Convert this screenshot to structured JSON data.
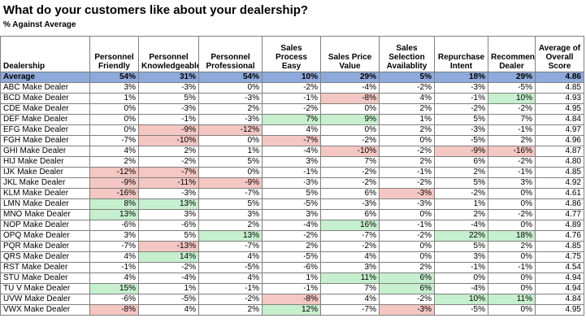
{
  "title": "What do your customers like about your dealership?",
  "subtitle": "% Against Average",
  "columns": [
    "Dealership",
    "Personnel Friendly",
    "Personnel Knowledgeable",
    "Personnel Professional",
    "Sales Process Easy",
    "Sales Price Value",
    "Sales Selection Availablity",
    "Repurchase Intent",
    "Recommend Dealer",
    "Average of Overall Score"
  ],
  "colors": {
    "average_row": "#8ea9db",
    "negative_fill": "#f4c7c3",
    "negative_text": "#c00000",
    "positive_fill": "#c6efce",
    "positive_text": "#006100"
  },
  "rows": [
    {
      "dealer": "Average",
      "values": [
        "54%",
        "31%",
        "54%",
        "10%",
        "29%",
        "5%",
        "18%",
        "29%",
        "4.86"
      ],
      "highlight": [
        "",
        "",
        "",
        "",
        "",
        "",
        "",
        "",
        ""
      ]
    },
    {
      "dealer": "ABC Make Dealer",
      "values": [
        "3%",
        "-3%",
        "0%",
        "-2%",
        "-4%",
        "-2%",
        "-3%",
        "-5%",
        "4.85"
      ],
      "highlight": [
        "",
        "",
        "",
        "",
        "",
        "",
        "",
        "",
        ""
      ]
    },
    {
      "dealer": "BCD Make Dealer",
      "values": [
        "1%",
        "5%",
        "-3%",
        "-1%",
        "-8%",
        "4%",
        "-1%",
        "10%",
        "4.93"
      ],
      "highlight": [
        "",
        "",
        "",
        "",
        "neg",
        "",
        "",
        "pos",
        ""
      ]
    },
    {
      "dealer": "CDE Make Dealer",
      "values": [
        "0%",
        "-3%",
        "2%",
        "-2%",
        "0%",
        "2%",
        "-2%",
        "-2%",
        "4.95"
      ],
      "highlight": [
        "",
        "",
        "",
        "",
        "",
        "",
        "",
        "",
        ""
      ]
    },
    {
      "dealer": "DEF Make Dealer",
      "values": [
        "0%",
        "-1%",
        "-3%",
        "7%",
        "9%",
        "1%",
        "5%",
        "7%",
        "4.84"
      ],
      "highlight": [
        "",
        "",
        "",
        "pos",
        "pos",
        "",
        "",
        "",
        ""
      ]
    },
    {
      "dealer": "EFG Make Dealer",
      "values": [
        "0%",
        "-9%",
        "-12%",
        "4%",
        "0%",
        "2%",
        "-3%",
        "-1%",
        "4.97"
      ],
      "highlight": [
        "",
        "neg",
        "neg",
        "",
        "",
        "",
        "",
        "",
        ""
      ]
    },
    {
      "dealer": "FGH Make Dealer",
      "values": [
        "-7%",
        "-10%",
        "0%",
        "-7%",
        "-2%",
        "0%",
        "-5%",
        "2%",
        "4.96"
      ],
      "highlight": [
        "",
        "neg",
        "",
        "neg",
        "",
        "",
        "",
        "",
        ""
      ]
    },
    {
      "dealer": "GHI Make Dealer",
      "values": [
        "4%",
        "2%",
        "1%",
        "-4%",
        "-10%",
        "-2%",
        "-9%",
        "-16%",
        "4.87"
      ],
      "highlight": [
        "",
        "",
        "",
        "",
        "neg",
        "",
        "neg",
        "neg",
        ""
      ]
    },
    {
      "dealer": "HIJ Make Dealer",
      "values": [
        "2%",
        "-2%",
        "5%",
        "3%",
        "7%",
        "2%",
        "6%",
        "-2%",
        "4.80"
      ],
      "highlight": [
        "",
        "",
        "",
        "",
        "",
        "",
        "",
        "",
        ""
      ]
    },
    {
      "dealer": "IJK Make Dealer",
      "values": [
        "-12%",
        "-7%",
        "0%",
        "-1%",
        "-2%",
        "-1%",
        "2%",
        "-1%",
        "4.85"
      ],
      "highlight": [
        "neg",
        "neg",
        "",
        "",
        "",
        "",
        "",
        "",
        ""
      ]
    },
    {
      "dealer": "JKL Make Dealer",
      "values": [
        "-9%",
        "-11%",
        "-9%",
        "-3%",
        "-2%",
        "-2%",
        "5%",
        "3%",
        "4.92"
      ],
      "highlight": [
        "neg",
        "neg",
        "neg",
        "",
        "",
        "",
        "",
        "",
        ""
      ]
    },
    {
      "dealer": "KLM Make Dealer",
      "values": [
        "-16%",
        "-3%",
        "-7%",
        "5%",
        "6%",
        "-3%",
        "-2%",
        "0%",
        "4.61"
      ],
      "highlight": [
        "neg",
        "",
        "",
        "",
        "",
        "neg",
        "",
        "",
        ""
      ]
    },
    {
      "dealer": "LMN Make Dealer",
      "values": [
        "8%",
        "13%",
        "5%",
        "-5%",
        "-3%",
        "-3%",
        "1%",
        "0%",
        "4.86"
      ],
      "highlight": [
        "pos",
        "pos",
        "",
        "",
        "",
        "",
        "",
        "",
        ""
      ]
    },
    {
      "dealer": "MNO Make Dealer",
      "values": [
        "13%",
        "3%",
        "3%",
        "3%",
        "6%",
        "0%",
        "2%",
        "-2%",
        "4.77"
      ],
      "highlight": [
        "pos",
        "",
        "",
        "",
        "",
        "",
        "",
        "",
        ""
      ]
    },
    {
      "dealer": "NOP Make Dealer",
      "values": [
        "-6%",
        "-6%",
        "2%",
        "-4%",
        "16%",
        "-1%",
        "-4%",
        "0%",
        "4.89"
      ],
      "highlight": [
        "",
        "",
        "",
        "",
        "pos",
        "",
        "",
        "",
        ""
      ]
    },
    {
      "dealer": "OPQ Make Dealer",
      "values": [
        "3%",
        "5%",
        "13%",
        "-2%",
        "-7%",
        "-2%",
        "22%",
        "18%",
        "4.76"
      ],
      "highlight": [
        "",
        "",
        "pos",
        "",
        "",
        "",
        "pos",
        "pos",
        ""
      ]
    },
    {
      "dealer": "PQR Make Dealer",
      "values": [
        "-7%",
        "-13%",
        "-7%",
        "2%",
        "-2%",
        "0%",
        "5%",
        "2%",
        "4.85"
      ],
      "highlight": [
        "",
        "neg",
        "",
        "",
        "",
        "",
        "",
        "",
        ""
      ]
    },
    {
      "dealer": "QRS Make Dealer",
      "values": [
        "4%",
        "14%",
        "4%",
        "-5%",
        "4%",
        "0%",
        "3%",
        "0%",
        "4.75"
      ],
      "highlight": [
        "",
        "pos",
        "",
        "",
        "",
        "",
        "",
        "",
        ""
      ]
    },
    {
      "dealer": "RST Make Dealer",
      "values": [
        "-1%",
        "-2%",
        "-5%",
        "-6%",
        "3%",
        "2%",
        "-1%",
        "-1%",
        "4.54"
      ],
      "highlight": [
        "",
        "",
        "",
        "",
        "",
        "",
        "",
        "",
        ""
      ]
    },
    {
      "dealer": "STU Make Dealer",
      "values": [
        "4%",
        "-4%",
        "4%",
        "1%",
        "11%",
        "6%",
        "0%",
        "0%",
        "4.94"
      ],
      "highlight": [
        "",
        "",
        "",
        "",
        "pos",
        "pos",
        "",
        "",
        ""
      ]
    },
    {
      "dealer": "TU V Make Dealer",
      "values": [
        "15%",
        "1%",
        "-1%",
        "-1%",
        "7%",
        "6%",
        "-4%",
        "0%",
        "4.94"
      ],
      "highlight": [
        "pos",
        "",
        "",
        "",
        "",
        "pos",
        "",
        "",
        ""
      ]
    },
    {
      "dealer": "UVW Make Dealer",
      "values": [
        "-6%",
        "-5%",
        "-2%",
        "-8%",
        "4%",
        "-2%",
        "10%",
        "11%",
        "4.84"
      ],
      "highlight": [
        "",
        "",
        "",
        "neg",
        "",
        "",
        "pos",
        "pos",
        ""
      ]
    },
    {
      "dealer": "VWX Make Dealer",
      "values": [
        "-8%",
        "4%",
        "2%",
        "12%",
        "-7%",
        "-3%",
        "-5%",
        "0%",
        "4.95"
      ],
      "highlight": [
        "neg",
        "",
        "",
        "pos",
        "",
        "neg",
        "",
        "",
        ""
      ]
    }
  ]
}
